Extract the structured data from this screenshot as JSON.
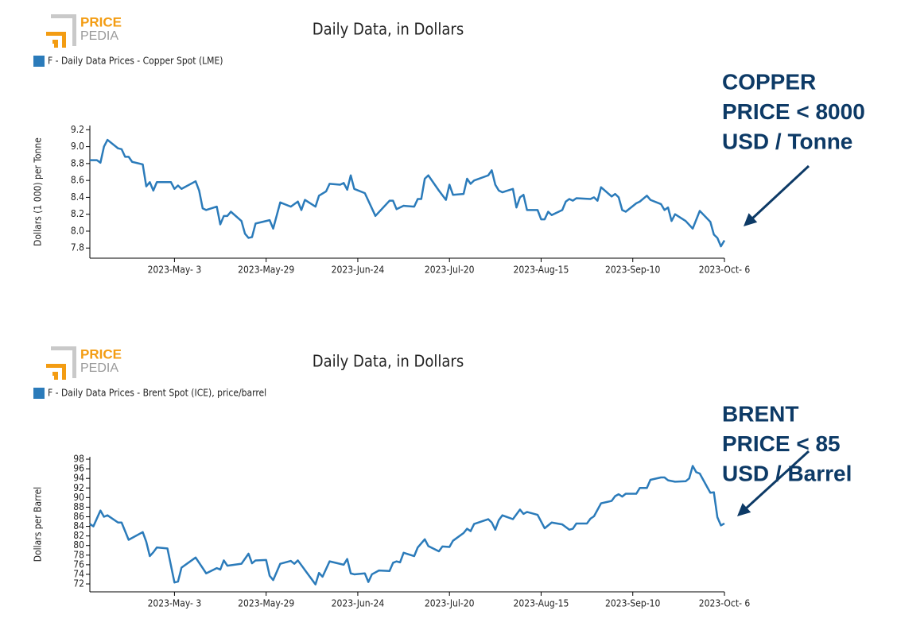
{
  "chart_data": [
    {
      "type": "line",
      "logo": [
        "PRICE",
        "PEDIA"
      ],
      "title": "Daily Data, in Dollars",
      "y_label": "Dollars (1 000) per Tonne",
      "annotation": [
        "COPPER",
        "PRICE < 8000",
        "USD / Tonne"
      ],
      "x": [
        "2023-04-09",
        "2023-04-11",
        "2023-04-12",
        "2023-04-13",
        "2023-04-14",
        "2023-04-17",
        "2023-04-18",
        "2023-04-19",
        "2023-04-20",
        "2023-04-21",
        "2023-04-24",
        "2023-04-25",
        "2023-04-26",
        "2023-04-27",
        "2023-04-28",
        "2023-05-02",
        "2023-05-03",
        "2023-05-04",
        "2023-05-05",
        "2023-05-09",
        "2023-05-10",
        "2023-05-11",
        "2023-05-12",
        "2023-05-15",
        "2023-05-16",
        "2023-05-17",
        "2023-05-18",
        "2023-05-19",
        "2023-05-22",
        "2023-05-23",
        "2023-05-24",
        "2023-05-25",
        "2023-05-26",
        "2023-05-30",
        "2023-05-31",
        "2023-06-02",
        "2023-06-05",
        "2023-06-07",
        "2023-06-08",
        "2023-06-09",
        "2023-06-12",
        "2023-06-13",
        "2023-06-15",
        "2023-06-16",
        "2023-06-19",
        "2023-06-20",
        "2023-06-21",
        "2023-06-22",
        "2023-06-23",
        "2023-06-26",
        "2023-06-29",
        "2023-07-03",
        "2023-07-04",
        "2023-07-05",
        "2023-07-07",
        "2023-07-10",
        "2023-07-11",
        "2023-07-12",
        "2023-07-13",
        "2023-07-14",
        "2023-07-17",
        "2023-07-19",
        "2023-07-20",
        "2023-07-21",
        "2023-07-24",
        "2023-07-25",
        "2023-07-26",
        "2023-07-27",
        "2023-07-31",
        "2023-08-01",
        "2023-08-02",
        "2023-08-03",
        "2023-08-04",
        "2023-08-07",
        "2023-08-08",
        "2023-08-09",
        "2023-08-10",
        "2023-08-11",
        "2023-08-14",
        "2023-08-15",
        "2023-08-16",
        "2023-08-17",
        "2023-08-18",
        "2023-08-21",
        "2023-08-22",
        "2023-08-23",
        "2023-08-24",
        "2023-08-25",
        "2023-08-29",
        "2023-08-30",
        "2023-08-31",
        "2023-09-01",
        "2023-09-04",
        "2023-09-05",
        "2023-09-06",
        "2023-09-07",
        "2023-09-08",
        "2023-09-11",
        "2023-09-12",
        "2023-09-14",
        "2023-09-15",
        "2023-09-18",
        "2023-09-19",
        "2023-09-20",
        "2023-09-21",
        "2023-09-22",
        "2023-09-25",
        "2023-09-27",
        "2023-09-29",
        "2023-10-02",
        "2023-10-03",
        "2023-10-04",
        "2023-10-05",
        "2023-10-06"
      ],
      "series": [
        {
          "name": "F - Daily Data Prices - Copper Spot (LME)",
          "color": "#2b7bba",
          "values": [
            8.84,
            8.84,
            8.81,
            9.0,
            9.08,
            8.98,
            8.97,
            8.88,
            8.88,
            8.82,
            8.79,
            8.53,
            8.58,
            8.48,
            8.58,
            8.58,
            8.5,
            8.54,
            8.5,
            8.59,
            8.48,
            8.27,
            8.25,
            8.29,
            8.08,
            8.18,
            8.18,
            8.23,
            8.12,
            7.97,
            7.92,
            7.93,
            8.09,
            8.13,
            8.03,
            8.34,
            8.29,
            8.35,
            8.25,
            8.37,
            8.29,
            8.42,
            8.47,
            8.56,
            8.55,
            8.57,
            8.49,
            8.66,
            8.5,
            8.45,
            8.18,
            8.36,
            8.36,
            8.26,
            8.3,
            8.29,
            8.38,
            8.38,
            8.62,
            8.66,
            8.48,
            8.37,
            8.55,
            8.43,
            8.44,
            8.62,
            8.56,
            8.6,
            8.66,
            8.72,
            8.55,
            8.48,
            8.46,
            8.5,
            8.28,
            8.4,
            8.43,
            8.25,
            8.25,
            8.14,
            8.14,
            8.23,
            8.19,
            8.25,
            8.35,
            8.38,
            8.36,
            8.39,
            8.38,
            8.4,
            8.36,
            8.52,
            8.41,
            8.44,
            8.4,
            8.25,
            8.23,
            8.33,
            8.35,
            8.42,
            8.37,
            8.32,
            8.25,
            8.28,
            8.12,
            8.2,
            8.12,
            8.03,
            8.24,
            8.11,
            7.96,
            7.92,
            7.82,
            7.89
          ]
        }
      ],
      "xlim": [
        "2023-04-09",
        "2023-10-06"
      ],
      "xticks": [
        {
          "value": "2023-05-03",
          "label": "2023-May- 3"
        },
        {
          "value": "2023-05-29",
          "label": "2023-May-29"
        },
        {
          "value": "2023-06-24",
          "label": "2023-Jun-24"
        },
        {
          "value": "2023-07-20",
          "label": "2023-Jul-20"
        },
        {
          "value": "2023-08-15",
          "label": "2023-Aug-15"
        },
        {
          "value": "2023-09-10",
          "label": "2023-Sep-10"
        },
        {
          "value": "2023-10-06",
          "label": "2023-Oct- 6"
        }
      ],
      "ylim": [
        7.68,
        9.25
      ],
      "yticks": [
        7.8,
        {
          "value": 8,
          "label": "8.0"
        },
        8.2,
        8.4,
        8.6,
        8.8,
        {
          "value": 9,
          "label": "9.0"
        },
        9.2
      ]
    },
    {
      "type": "line",
      "logo": [
        "PRICE",
        "PEDIA"
      ],
      "title": "Daily Data, in Dollars",
      "y_label": "Dollars per Barrel",
      "annotation": [
        "BRENT",
        "PRICE < 85",
        "USD / Barrel"
      ],
      "x": [
        "2023-04-09",
        "2023-04-10",
        "2023-04-12",
        "2023-04-13",
        "2023-04-14",
        "2023-04-17",
        "2023-04-18",
        "2023-04-20",
        "2023-04-24",
        "2023-04-25",
        "2023-04-26",
        "2023-04-27",
        "2023-04-28",
        "2023-05-01",
        "2023-05-03",
        "2023-05-04",
        "2023-05-05",
        "2023-05-09",
        "2023-05-12",
        "2023-05-15",
        "2023-05-16",
        "2023-05-17",
        "2023-05-18",
        "2023-05-22",
        "2023-05-24",
        "2023-05-25",
        "2023-05-26",
        "2023-05-29",
        "2023-05-30",
        "2023-05-31",
        "2023-06-02",
        "2023-06-05",
        "2023-06-06",
        "2023-06-07",
        "2023-06-12",
        "2023-06-13",
        "2023-06-14",
        "2023-06-16",
        "2023-06-20",
        "2023-06-21",
        "2023-06-22",
        "2023-06-23",
        "2023-06-26",
        "2023-06-27",
        "2023-06-28",
        "2023-06-30",
        "2023-07-03",
        "2023-07-04",
        "2023-07-05",
        "2023-07-06",
        "2023-07-07",
        "2023-07-10",
        "2023-07-11",
        "2023-07-13",
        "2023-07-14",
        "2023-07-17",
        "2023-07-18",
        "2023-07-20",
        "2023-07-21",
        "2023-07-24",
        "2023-07-25",
        "2023-07-26",
        "2023-07-27",
        "2023-07-31",
        "2023-08-01",
        "2023-08-02",
        "2023-08-03",
        "2023-08-04",
        "2023-08-07",
        "2023-08-09",
        "2023-08-10",
        "2023-08-11",
        "2023-08-14",
        "2023-08-16",
        "2023-08-18",
        "2023-08-21",
        "2023-08-23",
        "2023-08-24",
        "2023-08-25",
        "2023-08-28",
        "2023-08-29",
        "2023-08-30",
        "2023-09-01",
        "2023-09-04",
        "2023-09-05",
        "2023-09-06",
        "2023-09-07",
        "2023-09-08",
        "2023-09-11",
        "2023-09-12",
        "2023-09-14",
        "2023-09-15",
        "2023-09-18",
        "2023-09-19",
        "2023-09-20",
        "2023-09-22",
        "2023-09-25",
        "2023-09-26",
        "2023-09-27",
        "2023-09-28",
        "2023-09-29",
        "2023-10-02",
        "2023-10-03",
        "2023-10-04",
        "2023-10-05",
        "2023-10-06"
      ],
      "series": [
        {
          "name": "F - Daily Data Prices - Brent Spot (ICE), price/barrel",
          "color": "#2b7bba",
          "values": [
            84.5,
            84.0,
            87.3,
            86.0,
            86.3,
            84.8,
            84.8,
            81.2,
            82.8,
            80.8,
            77.8,
            78.6,
            79.6,
            79.4,
            72.3,
            72.5,
            75.4,
            77.5,
            74.2,
            75.3,
            75.0,
            76.9,
            75.8,
            76.2,
            78.3,
            76.3,
            76.9,
            77.0,
            73.7,
            72.8,
            76.2,
            76.8,
            76.2,
            76.9,
            71.9,
            74.3,
            73.5,
            76.7,
            76.0,
            77.2,
            74.2,
            74.0,
            74.2,
            72.4,
            74.0,
            74.8,
            74.7,
            76.4,
            76.7,
            76.5,
            78.5,
            77.8,
            79.6,
            81.3,
            79.9,
            78.8,
            79.8,
            79.7,
            81.0,
            82.6,
            83.5,
            83.0,
            84.5,
            85.5,
            84.8,
            83.3,
            85.3,
            86.3,
            85.5,
            87.5,
            86.6,
            87.0,
            86.4,
            83.6,
            84.8,
            84.4,
            83.3,
            83.5,
            84.6,
            84.6,
            85.6,
            86.1,
            88.8,
            89.3,
            90.3,
            90.7,
            90.2,
            90.8,
            90.8,
            92.0,
            92.0,
            93.7,
            94.2,
            94.2,
            93.6,
            93.3,
            93.4,
            94.0,
            96.6,
            95.3,
            95.0,
            91.0,
            91.1,
            85.9,
            84.2,
            84.6
          ]
        }
      ],
      "xlim": [
        "2023-04-09",
        "2023-10-06"
      ],
      "xticks": [
        {
          "value": "2023-05-03",
          "label": "2023-May- 3"
        },
        {
          "value": "2023-05-29",
          "label": "2023-May-29"
        },
        {
          "value": "2023-06-24",
          "label": "2023-Jun-24"
        },
        {
          "value": "2023-07-20",
          "label": "2023-Jul-20"
        },
        {
          "value": "2023-08-15",
          "label": "2023-Aug-15"
        },
        {
          "value": "2023-09-10",
          "label": "2023-Sep-10"
        },
        {
          "value": "2023-10-06",
          "label": "2023-Oct- 6"
        }
      ],
      "ylim": [
        70.35,
        98.5
      ],
      "yticks": [
        72,
        74,
        76,
        78,
        80,
        82,
        84,
        86,
        88,
        90,
        92,
        94,
        96,
        98
      ]
    }
  ]
}
